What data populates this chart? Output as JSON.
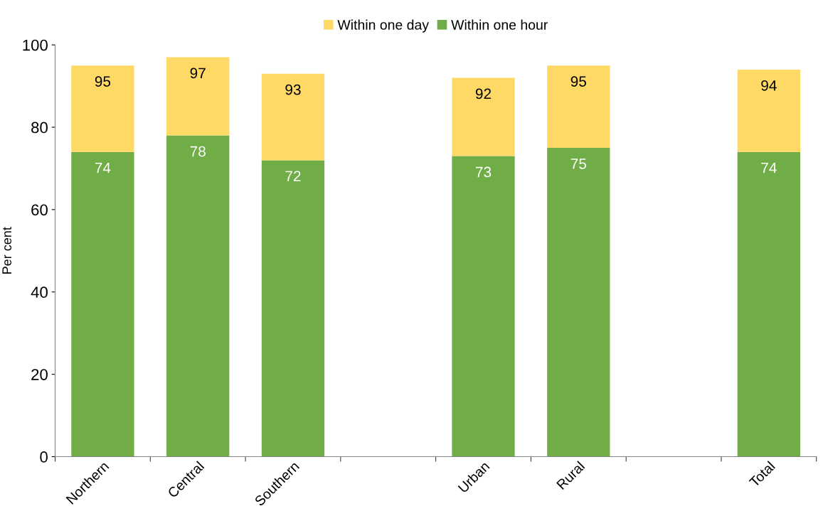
{
  "chart_data": {
    "type": "bar",
    "ylabel": "Per cent",
    "stacked": true,
    "categories": [
      "Northern",
      "Central",
      "Southern",
      null,
      "Urban",
      "Rural",
      null,
      "Total"
    ],
    "series": [
      {
        "name": "Within one hour",
        "color": "#70ad47",
        "values": [
          74,
          78,
          72,
          null,
          73,
          75,
          null,
          74
        ],
        "value_labels": [
          "74",
          "78",
          "72",
          null,
          "73",
          "75",
          null,
          "74"
        ]
      },
      {
        "name": "Within one day",
        "color": "#ffd966",
        "values": [
          21,
          19,
          21,
          null,
          19,
          20,
          null,
          20
        ]
      }
    ],
    "totals": [
      "95",
      "97",
      "93",
      null,
      "92",
      "95",
      null,
      "94"
    ],
    "ylim": [
      0,
      100
    ],
    "yticks": [
      0,
      20,
      40,
      60,
      80,
      100
    ],
    "legend": "top",
    "grid": false
  }
}
